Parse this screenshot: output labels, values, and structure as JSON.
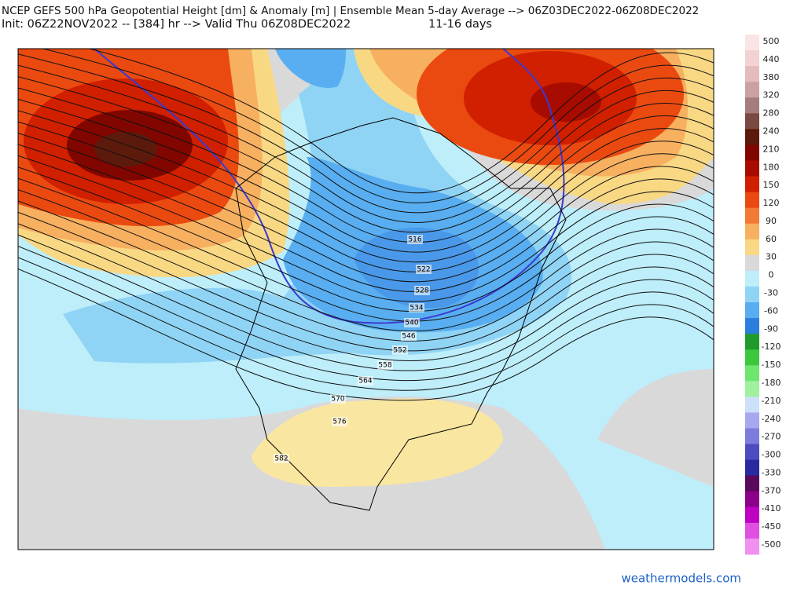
{
  "header": {
    "title": "NCEP GEFS 500 hPa Geopotential Height [dm] & Anomaly [m] | Ensemble Mean 5-day Average --> 06Z03DEC2022-06Z08DEC2022",
    "init": "Init: 06Z22NOV2022 -- [384] hr --> Valid Thu 06Z08DEC2022",
    "range": "11-16 days"
  },
  "map": {
    "contour_labels": [
      516,
      522,
      528,
      534,
      540,
      546,
      552,
      558,
      564,
      570,
      576,
      582
    ]
  },
  "colorbar": {
    "labels": [
      500,
      440,
      380,
      320,
      280,
      240,
      210,
      180,
      150,
      120,
      90,
      60,
      30,
      0,
      -30,
      -60,
      -90,
      -120,
      -150,
      -180,
      -210,
      -240,
      -270,
      -300,
      -330,
      -370,
      -410,
      -450,
      -500
    ],
    "colors": [
      "#fbe4e4",
      "#f2d2d2",
      "#e4bcbc",
      "#caa2a2",
      "#a47e7e",
      "#7a4a42",
      "#5c1a0c",
      "#820600",
      "#a80c00",
      "#d02000",
      "#ea4a10",
      "#f27a34",
      "#f7b060",
      "#f9d884",
      "#d9d9d9",
      "#bdeefa",
      "#90d4f5",
      "#58aef0",
      "#2c7ede",
      "#1e9b2a",
      "#3cc83c",
      "#6ee66e",
      "#a0f0a0",
      "#cce0fa",
      "#a8a8f0",
      "#7c7cdc",
      "#4c4cc0",
      "#2a2aa0",
      "#5a0a5a",
      "#8c008c",
      "#c000c0",
      "#e050e0",
      "#f090f0"
    ]
  },
  "footer": {
    "credit": "weathermodels.com"
  }
}
